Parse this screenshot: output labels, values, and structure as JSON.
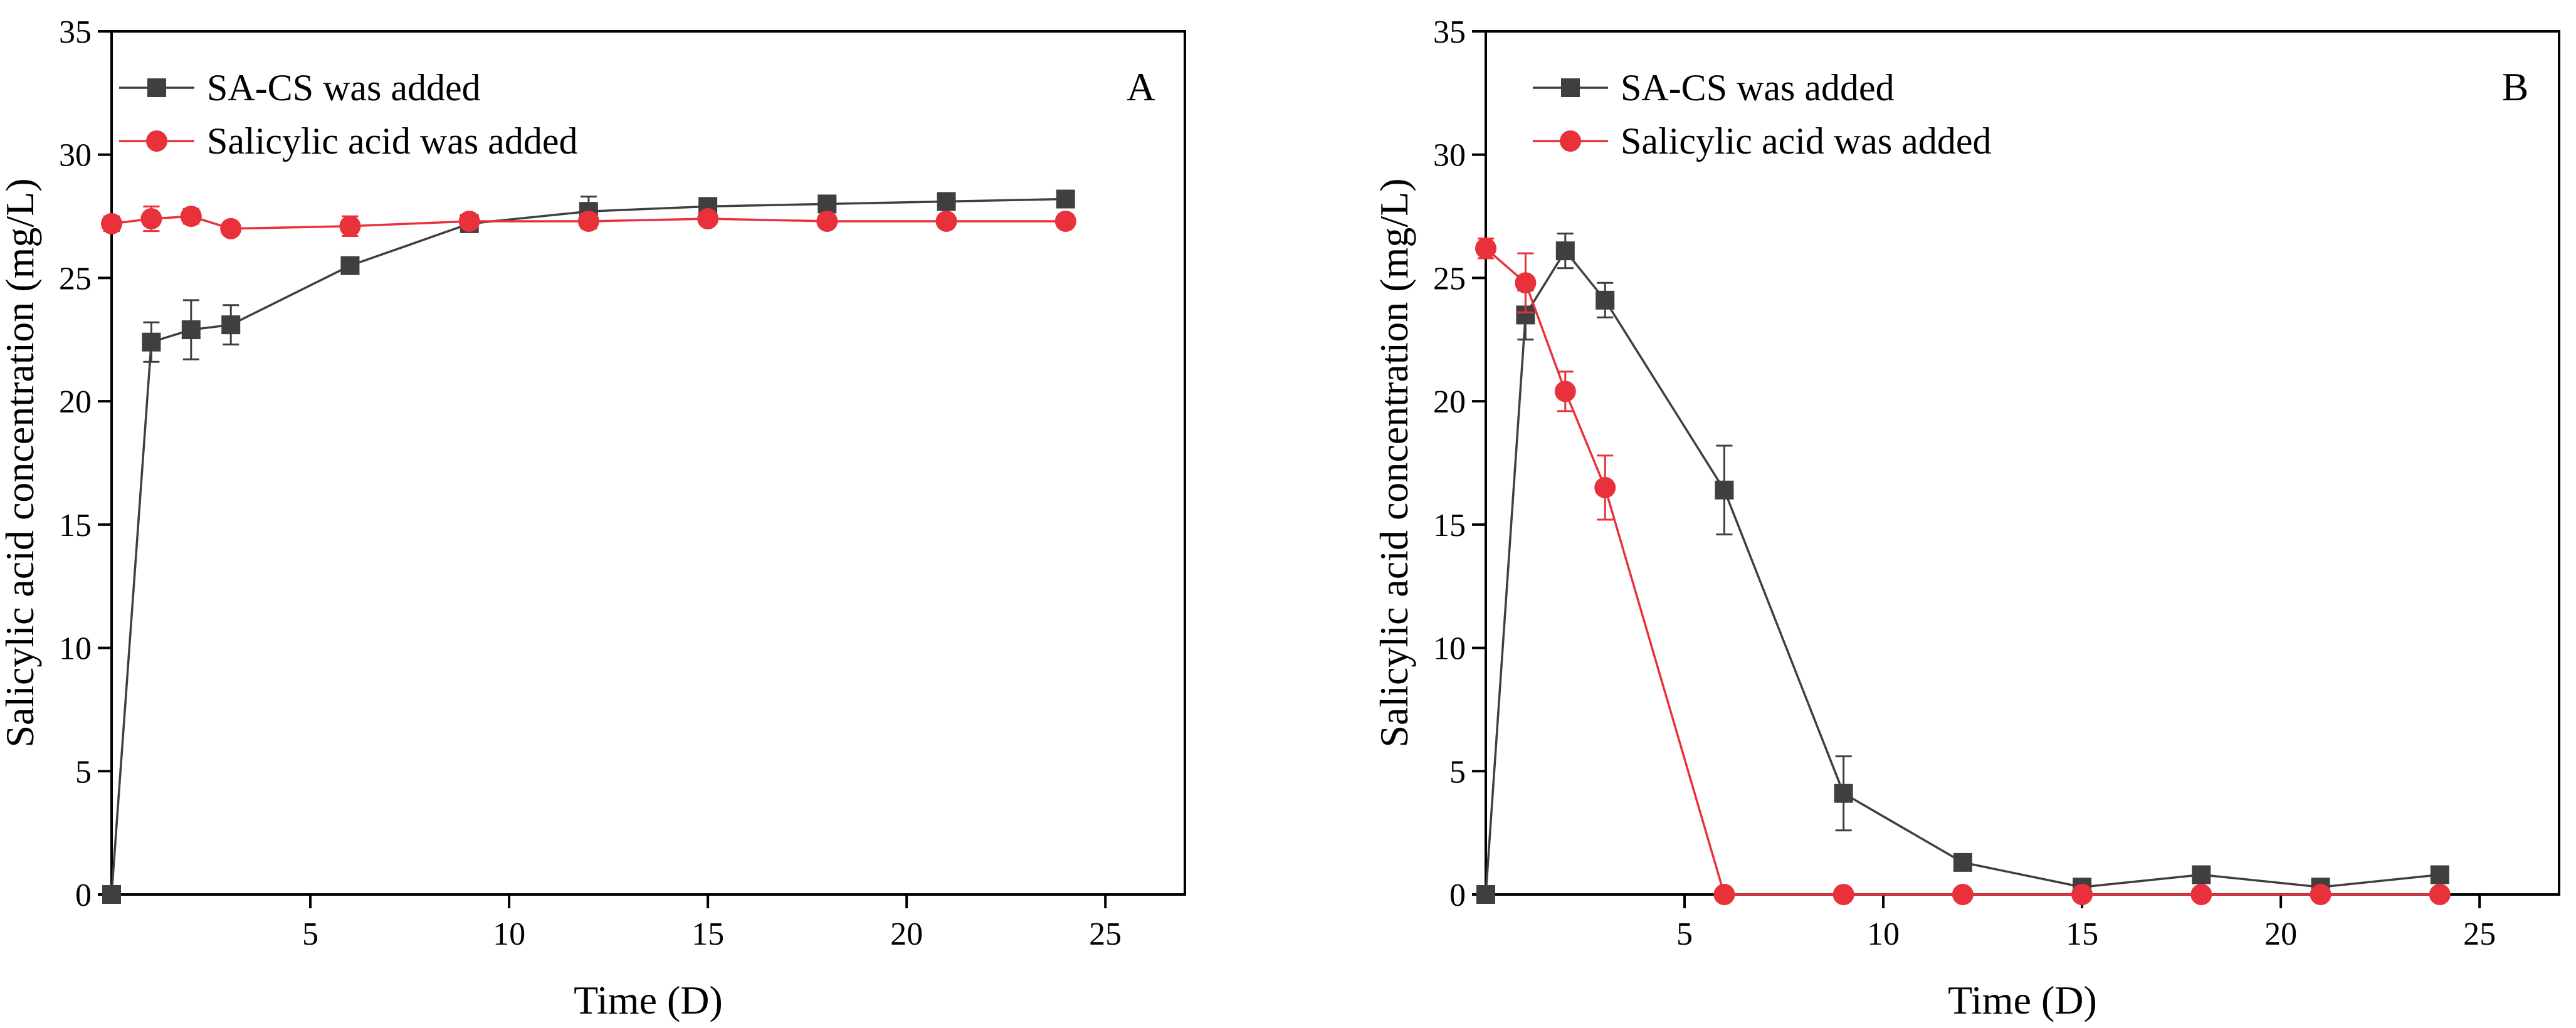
{
  "colors": {
    "sa_cs": "#3f3f3f",
    "salicylic": "#e8313a",
    "axis": "#000000"
  },
  "chart_data": [
    {
      "type": "line",
      "panel_label": "A",
      "xlabel": "Time (D)",
      "ylabel": "Salicylic acid concentration (mg/L)",
      "xlim": [
        0,
        27
      ],
      "ylim": [
        0,
        35
      ],
      "xticks": [
        5,
        10,
        15,
        20,
        25
      ],
      "yticks": [
        0,
        5,
        10,
        15,
        20,
        25,
        30,
        35
      ],
      "legend_position": "top-left",
      "series": [
        {
          "name": "SA-CS was added",
          "marker": "square",
          "x": [
            0,
            1,
            2,
            3,
            6,
            9,
            12,
            15,
            18,
            21,
            24
          ],
          "y": [
            0,
            22.4,
            22.9,
            23.1,
            25.5,
            27.2,
            27.7,
            27.9,
            28.0,
            28.1,
            28.2
          ],
          "err": [
            0,
            0.8,
            1.2,
            0.8,
            0.3,
            0.3,
            0.6,
            0.2,
            0.2,
            0.2,
            0.2
          ]
        },
        {
          "name": "Salicylic acid was added",
          "marker": "circle",
          "x": [
            0,
            1,
            2,
            3,
            6,
            9,
            12,
            15,
            18,
            21,
            24
          ],
          "y": [
            27.2,
            27.4,
            27.5,
            27.0,
            27.1,
            27.3,
            27.3,
            27.4,
            27.3,
            27.3,
            27.3
          ],
          "err": [
            0.3,
            0.5,
            0.3,
            0.2,
            0.4,
            0.2,
            0.3,
            0.2,
            0.2,
            0.2,
            0.2
          ]
        }
      ]
    },
    {
      "type": "line",
      "panel_label": "B",
      "xlabel": "Time (D)",
      "ylabel": "Salicylic acid concentration (mg/L)",
      "xlim": [
        0,
        27
      ],
      "ylim": [
        0,
        35
      ],
      "xticks": [
        5,
        10,
        15,
        20,
        25
      ],
      "yticks": [
        0,
        5,
        10,
        15,
        20,
        25,
        30,
        35
      ],
      "legend_position": "top-left",
      "series": [
        {
          "name": "SA-CS was added",
          "marker": "square",
          "x": [
            0,
            1,
            2,
            3,
            6,
            9,
            12,
            15,
            18,
            21,
            24
          ],
          "y": [
            0,
            23.5,
            26.1,
            24.1,
            16.4,
            4.1,
            1.3,
            0.3,
            0.8,
            0.3,
            0.8
          ],
          "err": [
            0,
            1.0,
            0.7,
            0.7,
            1.8,
            1.5,
            0,
            0,
            0,
            0,
            0
          ]
        },
        {
          "name": "Salicylic acid was added",
          "marker": "circle",
          "x": [
            0,
            1,
            2,
            3,
            6,
            9,
            12,
            15,
            18,
            21,
            24
          ],
          "y": [
            26.2,
            24.8,
            20.4,
            16.5,
            0,
            0,
            0,
            0,
            0,
            0,
            0
          ],
          "err": [
            0.4,
            1.2,
            0.8,
            1.3,
            0,
            0,
            0,
            0,
            0,
            0,
            0
          ]
        }
      ]
    }
  ]
}
